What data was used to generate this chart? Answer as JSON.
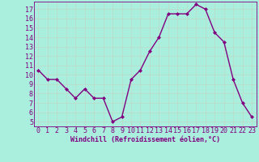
{
  "x": [
    0,
    1,
    2,
    3,
    4,
    5,
    6,
    7,
    8,
    9,
    10,
    11,
    12,
    13,
    14,
    15,
    16,
    17,
    18,
    19,
    20,
    21,
    22,
    23
  ],
  "y": [
    10.5,
    9.5,
    9.5,
    8.5,
    7.5,
    8.5,
    7.5,
    7.5,
    5.0,
    5.5,
    9.5,
    10.5,
    12.5,
    14.0,
    16.5,
    16.5,
    16.5,
    17.5,
    17.0,
    14.5,
    13.5,
    9.5,
    7.0,
    5.5
  ],
  "line_color": "#800080",
  "marker": "D",
  "marker_size": 2,
  "bg_color": "#aaeedd",
  "grid_color": "#bbddcc",
  "xlabel": "Windchill (Refroidissement éolien,°C)",
  "ylabel_ticks": [
    5,
    6,
    7,
    8,
    9,
    10,
    11,
    12,
    13,
    14,
    15,
    16,
    17
  ],
  "xlim": [
    -0.5,
    23.5
  ],
  "ylim": [
    4.5,
    17.8
  ],
  "xlabel_fontsize": 6,
  "tick_fontsize": 6,
  "line_width": 1.0
}
